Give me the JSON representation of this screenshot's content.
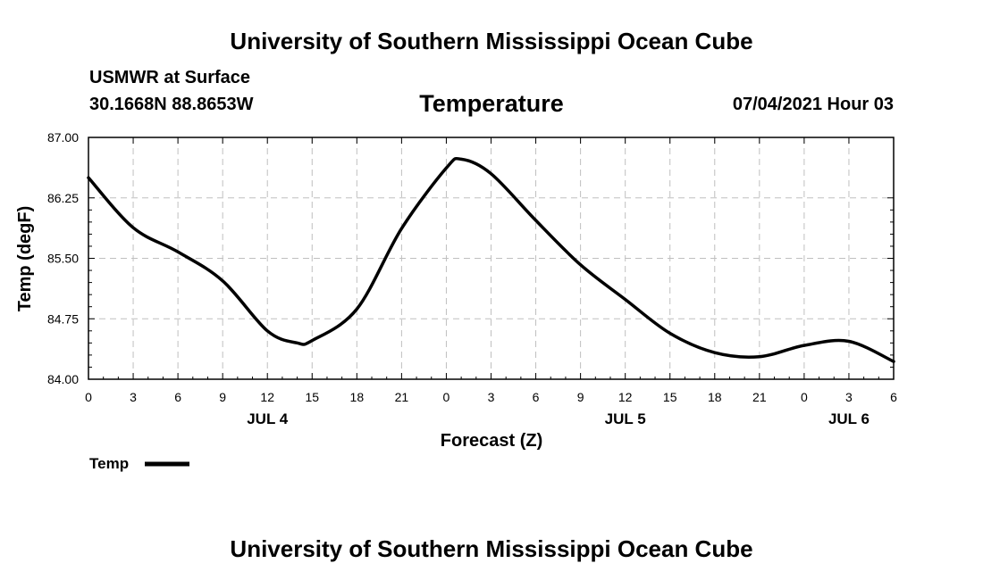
{
  "header": {
    "title": "University of Southern Mississippi Ocean Cube",
    "station": "USMWR at Surface",
    "coords": "30.1668N  88.8653W",
    "variable": "Temperature",
    "datetime": "07/04/2021 Hour 03"
  },
  "footer": {
    "title": "University of Southern Mississippi Ocean Cube"
  },
  "colors": {
    "line": "#000000",
    "grid": "#bfbfbf"
  },
  "chart_data": {
    "type": "line",
    "title": "Temperature",
    "xlabel": "Forecast (Z)",
    "ylabel": "Temp (degF)",
    "xlim": [
      0,
      54
    ],
    "ylim": [
      84.0,
      87.0
    ],
    "y_ticks": [
      "84.00",
      "84.75",
      "85.50",
      "86.25",
      "87.00"
    ],
    "x_ticks": [
      {
        "hour": 0,
        "label": "0"
      },
      {
        "hour": 3,
        "label": "3"
      },
      {
        "hour": 6,
        "label": "6"
      },
      {
        "hour": 9,
        "label": "9"
      },
      {
        "hour": 12,
        "label": "12"
      },
      {
        "hour": 15,
        "label": "15"
      },
      {
        "hour": 18,
        "label": "18"
      },
      {
        "hour": 21,
        "label": "21"
      },
      {
        "hour": 24,
        "label": "0"
      },
      {
        "hour": 27,
        "label": "3"
      },
      {
        "hour": 30,
        "label": "6"
      },
      {
        "hour": 33,
        "label": "9"
      },
      {
        "hour": 36,
        "label": "12"
      },
      {
        "hour": 39,
        "label": "15"
      },
      {
        "hour": 42,
        "label": "18"
      },
      {
        "hour": 45,
        "label": "21"
      },
      {
        "hour": 48,
        "label": "0"
      },
      {
        "hour": 51,
        "label": "3"
      },
      {
        "hour": 54,
        "label": "6"
      }
    ],
    "date_labels": [
      {
        "hour": 12,
        "label": "JUL 4"
      },
      {
        "hour": 36,
        "label": "JUL 5"
      },
      {
        "hour": 51,
        "label": "JUL 6"
      }
    ],
    "grid": true,
    "legend": {
      "position": "bottom-left",
      "label": "Temp"
    },
    "series": [
      {
        "name": "Temp",
        "x": [
          0,
          3,
          6,
          9,
          12,
          14,
          15,
          18,
          21,
          24,
          25,
          27,
          30,
          33,
          36,
          39,
          42,
          45,
          48,
          51,
          54
        ],
        "values": [
          86.5,
          85.88,
          85.58,
          85.22,
          84.6,
          84.45,
          84.48,
          84.87,
          85.87,
          86.62,
          86.73,
          86.55,
          85.97,
          85.42,
          84.99,
          84.57,
          84.33,
          84.28,
          84.42,
          84.47,
          84.22
        ]
      }
    ]
  }
}
